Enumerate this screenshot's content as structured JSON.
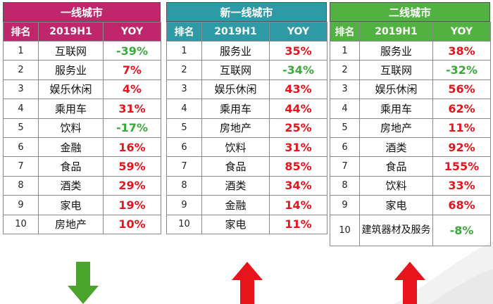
{
  "colors": {
    "tier1": "#c0266b",
    "new_tier1": "#2d9aa6",
    "tier2": "#52b241",
    "positive": "#e8141c",
    "negative": "#3aa83a",
    "arrow_down": "#4aa32a",
    "arrow_up": "#e8141c"
  },
  "panels": [
    {
      "title": "一线城市",
      "headers": [
        "排名",
        "2019H1",
        "YOY"
      ],
      "arrow": "arrow-down-icon",
      "rows": [
        {
          "rank": "1",
          "name": "互联网",
          "yoy": "-39%"
        },
        {
          "rank": "2",
          "name": "服务业",
          "yoy": "7%"
        },
        {
          "rank": "3",
          "name": "娱乐休闲",
          "yoy": "4%"
        },
        {
          "rank": "4",
          "name": "乘用车",
          "yoy": "31%"
        },
        {
          "rank": "5",
          "name": "饮料",
          "yoy": "-17%"
        },
        {
          "rank": "6",
          "name": "金融",
          "yoy": "16%"
        },
        {
          "rank": "7",
          "name": "食品",
          "yoy": "59%"
        },
        {
          "rank": "8",
          "name": "酒类",
          "yoy": "29%"
        },
        {
          "rank": "9",
          "name": "家电",
          "yoy": "19%"
        },
        {
          "rank": "10",
          "name": "房地产",
          "yoy": "10%"
        }
      ]
    },
    {
      "title": "新一线城市",
      "headers": [
        "排名",
        "2019H1",
        "YOY"
      ],
      "arrow": "arrow-up-icon",
      "rows": [
        {
          "rank": "1",
          "name": "服务业",
          "yoy": "35%"
        },
        {
          "rank": "2",
          "name": "互联网",
          "yoy": "-34%"
        },
        {
          "rank": "3",
          "name": "娱乐休闲",
          "yoy": "43%"
        },
        {
          "rank": "4",
          "name": "乘用车",
          "yoy": "44%"
        },
        {
          "rank": "5",
          "name": "房地产",
          "yoy": "25%"
        },
        {
          "rank": "6",
          "name": "饮料",
          "yoy": "31%"
        },
        {
          "rank": "7",
          "name": "食品",
          "yoy": "85%"
        },
        {
          "rank": "8",
          "name": "酒类",
          "yoy": "34%"
        },
        {
          "rank": "9",
          "name": "金融",
          "yoy": "14%"
        },
        {
          "rank": "10",
          "name": "家电",
          "yoy": "11%"
        }
      ]
    },
    {
      "title": "二线城市",
      "headers": [
        "排名",
        "2019H1",
        "YOY"
      ],
      "arrow": "arrow-up-icon",
      "rows": [
        {
          "rank": "1",
          "name": "服务业",
          "yoy": "38%"
        },
        {
          "rank": "2",
          "name": "互联网",
          "yoy": "-32%"
        },
        {
          "rank": "3",
          "name": "娱乐休闲",
          "yoy": "56%"
        },
        {
          "rank": "4",
          "name": "乘用车",
          "yoy": "62%"
        },
        {
          "rank": "5",
          "name": "房地产",
          "yoy": "11%"
        },
        {
          "rank": "6",
          "name": "酒类",
          "yoy": "92%"
        },
        {
          "rank": "7",
          "name": "食品",
          "yoy": "155%"
        },
        {
          "rank": "8",
          "name": "饮料",
          "yoy": "33%"
        },
        {
          "rank": "9",
          "name": "家电",
          "yoy": "68%"
        },
        {
          "rank": "10",
          "name": "建筑器材及服务",
          "yoy": "-8%"
        }
      ]
    }
  ]
}
